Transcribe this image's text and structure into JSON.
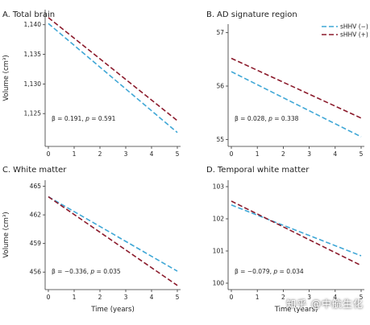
{
  "chart_data": [
    {
      "type": "line",
      "panel": "A.",
      "title": "Total brain",
      "ylabel": "Volume (cm³)",
      "xlabel": "",
      "xlim": [
        0,
        5
      ],
      "ylim": [
        1120,
        1142
      ],
      "xticks": [
        0,
        1,
        2,
        3,
        4,
        5
      ],
      "yticks": [
        1125,
        1130,
        1135,
        1140
      ],
      "ytick_labels": [
        "1,125",
        "1,130",
        "1,135",
        "1,140"
      ],
      "annotation": {
        "beta": "β = 0.191, ",
        "p_label": "p",
        "p_rest": " = 0.591"
      },
      "series": [
        {
          "key": "neg",
          "x": [
            0,
            5
          ],
          "y": [
            1140.2,
            1121.8
          ]
        },
        {
          "key": "pos",
          "x": [
            0,
            5
          ],
          "y": [
            1141.2,
            1123.8
          ]
        }
      ]
    },
    {
      "type": "line",
      "panel": "B.",
      "title": "AD signature region",
      "ylabel": "",
      "xlabel": "",
      "xlim": [
        0,
        5
      ],
      "ylim": [
        54.93,
        57.1
      ],
      "xticks": [
        0,
        1,
        2,
        3,
        4,
        5
      ],
      "yticks": [
        55,
        56,
        57
      ],
      "ytick_labels": [
        "55",
        "56",
        "57"
      ],
      "annotation": {
        "beta": "β = 0.028, ",
        "p_label": "p",
        "p_rest": " = 0.338"
      },
      "legend": true,
      "series": [
        {
          "key": "neg",
          "x": [
            0,
            5
          ],
          "y": [
            56.27,
            55.05
          ]
        },
        {
          "key": "pos",
          "x": [
            0,
            5
          ],
          "y": [
            56.52,
            55.4
          ]
        }
      ]
    },
    {
      "type": "line",
      "panel": "C.",
      "title": "White matter",
      "ylabel": "Volume (cm³)",
      "xlabel": "Time (years)",
      "xlim": [
        0,
        5
      ],
      "ylim": [
        454.5,
        465.3
      ],
      "xticks": [
        0,
        1,
        2,
        3,
        4,
        5
      ],
      "yticks": [
        456,
        459,
        462,
        465
      ],
      "ytick_labels": [
        "456",
        "459",
        "462",
        "465"
      ],
      "annotation": {
        "beta": "β = −0.336, ",
        "p_label": "p",
        "p_rest": " = 0.035"
      },
      "series": [
        {
          "key": "neg",
          "x": [
            0,
            5
          ],
          "y": [
            463.9,
            456.1
          ]
        },
        {
          "key": "pos",
          "x": [
            0,
            5
          ],
          "y": [
            463.9,
            454.6
          ]
        }
      ]
    },
    {
      "type": "line",
      "panel": "D.",
      "title": "Temporal white matter",
      "ylabel": "",
      "xlabel": "Time (years)",
      "xlim": [
        0,
        5
      ],
      "ylim": [
        99.9,
        103.1
      ],
      "xticks": [
        0,
        1,
        2,
        3,
        4,
        5
      ],
      "yticks": [
        100,
        101,
        102,
        103
      ],
      "ytick_labels": [
        "100",
        "101",
        "102",
        "103"
      ],
      "annotation": {
        "beta": "β = −0.079, ",
        "p_label": "p",
        "p_rest": " = 0.034"
      },
      "series": [
        {
          "key": "neg",
          "x": [
            0,
            5
          ],
          "y": [
            102.43,
            100.85
          ]
        },
        {
          "key": "pos",
          "x": [
            0,
            5
          ],
          "y": [
            102.55,
            100.55
          ]
        }
      ]
    }
  ],
  "legend": [
    {
      "key": "neg",
      "name": "sHHV (−)",
      "color": "#3fa7d6",
      "dash": "6,3"
    },
    {
      "key": "pos",
      "name": "sHHV (+)",
      "color": "#8b1a2b",
      "dash": "6,3"
    }
  ],
  "watermark": "知乎 @中航生化"
}
